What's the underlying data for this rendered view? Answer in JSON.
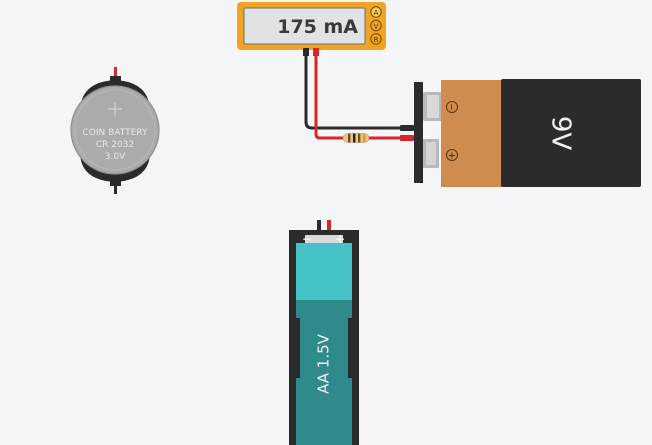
{
  "multimeter": {
    "reading": "175 mA",
    "modes": [
      "A",
      "V",
      "R"
    ],
    "active_mode": "A"
  },
  "coin_battery": {
    "line1": "COIN BATTERY",
    "line2": "CR 2032",
    "line3": "3.0V"
  },
  "battery_9v": {
    "label": "9V",
    "negative_symbol": "−",
    "positive_symbol": "+"
  },
  "battery_aa": {
    "label": "AA 1.5V",
    "negative_symbol": "−",
    "positive_symbol": "+"
  },
  "colors": {
    "background": "#f3f5f7",
    "multimeter_body": "#f0a422",
    "multimeter_screen": "#dfe3e4",
    "wire_red": "#d9252b",
    "wire_black": "#2b2b2b",
    "battery_9v_copper": "#d08c4e",
    "battery_9v_black": "#2b2b2b",
    "aa_teal_light": "#45c2c6",
    "aa_teal_dark": "#2f8a8c",
    "coin_silver": "#a9abad"
  }
}
